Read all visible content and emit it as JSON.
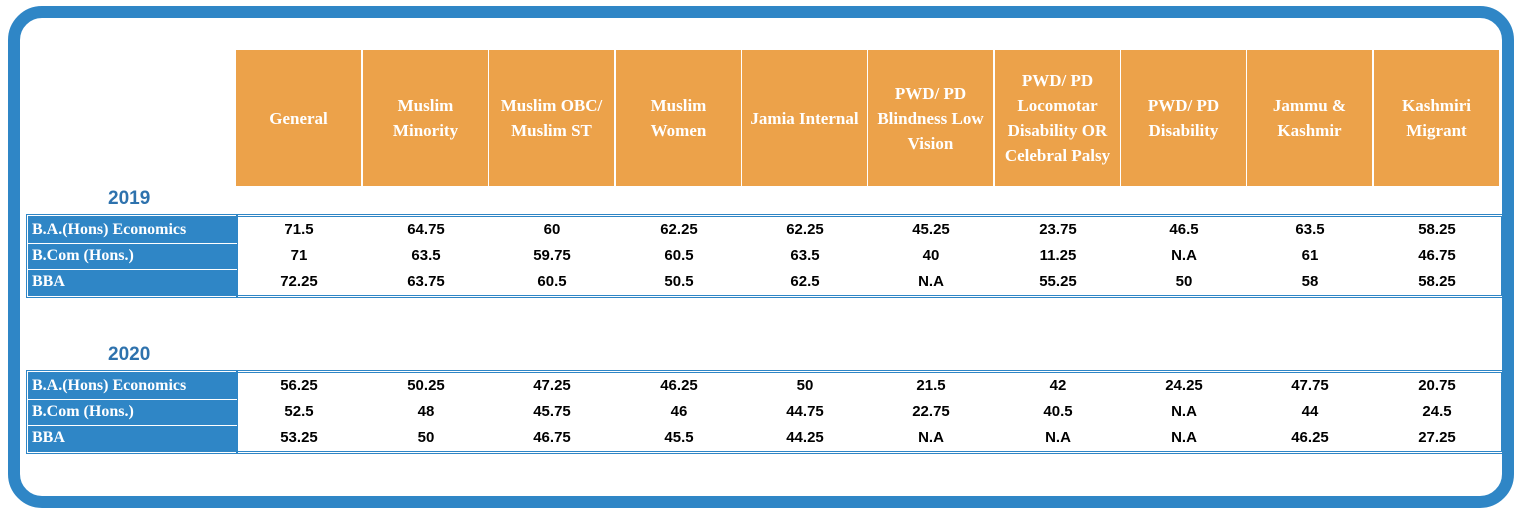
{
  "columns": [
    [
      "General"
    ],
    [
      "Muslim",
      "Minority"
    ],
    [
      "Muslim OBC/",
      "Muslim ST"
    ],
    [
      "Muslim",
      "Women"
    ],
    [
      "Jamia Internal"
    ],
    [
      "PWD/ PD",
      "Blindness Low",
      "Vision"
    ],
    [
      "PWD/ PD",
      "Locomotar",
      "Disability OR",
      "Celebral Palsy"
    ],
    [
      "PWD/ PD",
      "Disability"
    ],
    [
      "Jammu &",
      "Kashmir"
    ],
    [
      "Kashmiri",
      "Migrant"
    ]
  ],
  "sections": [
    {
      "year": "2019",
      "rows": [
        {
          "label": "B.A.(Hons) Economics",
          "values": [
            "71.5",
            "64.75",
            "60",
            "62.25",
            "62.25",
            "45.25",
            "23.75",
            "46.5",
            "63.5",
            "58.25"
          ]
        },
        {
          "label": "B.Com (Hons.)",
          "values": [
            "71",
            "63.5",
            "59.75",
            "60.5",
            "63.5",
            "40",
            "11.25",
            "N.A",
            "61",
            "46.75"
          ]
        },
        {
          "label": "BBA",
          "values": [
            "72.25",
            "63.75",
            "60.5",
            "50.5",
            "62.5",
            "N.A",
            "55.25",
            "50",
            "58",
            "58.25"
          ]
        }
      ]
    },
    {
      "year": "2020",
      "rows": [
        {
          "label": "B.A.(Hons) Economics",
          "values": [
            "56.25",
            "50.25",
            "47.25",
            "46.25",
            "50",
            "21.5",
            "42",
            "24.25",
            "47.75",
            "20.75"
          ]
        },
        {
          "label": "B.Com (Hons.)",
          "values": [
            "52.5",
            "48",
            "45.75",
            "46",
            "44.75",
            "22.75",
            "40.5",
            "N.A",
            "44",
            "24.5"
          ]
        },
        {
          "label": "BBA",
          "values": [
            "53.25",
            "50",
            "46.75",
            "45.5",
            "44.25",
            "N.A",
            "N.A",
            "N.A",
            "46.25",
            "27.25"
          ]
        }
      ]
    }
  ],
  "colors": {
    "frame": "#2f86c6",
    "header_fill": "#eca24a",
    "row_label_fill": "#2f86c6",
    "year_text": "#2e72ad"
  }
}
